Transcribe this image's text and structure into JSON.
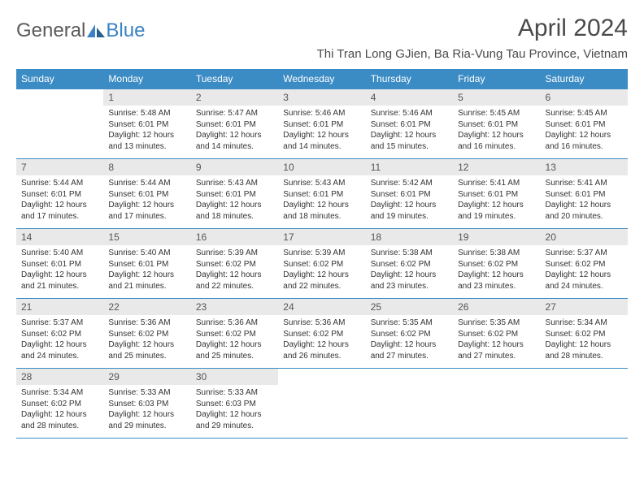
{
  "logo": {
    "text1": "General",
    "text2": "Blue"
  },
  "title": "April 2024",
  "location": "Thi Tran Long GJien, Ba Ria-Vung Tau Province, Vietnam",
  "colors": {
    "header_bg": "#3b8bc4",
    "header_text": "#ffffff",
    "daynum_bg": "#e9e9e9",
    "border": "#3b8bc4",
    "logo_gray": "#5a5a5a",
    "logo_blue": "#3b82c4"
  },
  "weekdays": [
    "Sunday",
    "Monday",
    "Tuesday",
    "Wednesday",
    "Thursday",
    "Friday",
    "Saturday"
  ],
  "weeks": [
    [
      null,
      {
        "n": "1",
        "sr": "5:48 AM",
        "ss": "6:01 PM",
        "dl": "12 hours and 13 minutes."
      },
      {
        "n": "2",
        "sr": "5:47 AM",
        "ss": "6:01 PM",
        "dl": "12 hours and 14 minutes."
      },
      {
        "n": "3",
        "sr": "5:46 AM",
        "ss": "6:01 PM",
        "dl": "12 hours and 14 minutes."
      },
      {
        "n": "4",
        "sr": "5:46 AM",
        "ss": "6:01 PM",
        "dl": "12 hours and 15 minutes."
      },
      {
        "n": "5",
        "sr": "5:45 AM",
        "ss": "6:01 PM",
        "dl": "12 hours and 16 minutes."
      },
      {
        "n": "6",
        "sr": "5:45 AM",
        "ss": "6:01 PM",
        "dl": "12 hours and 16 minutes."
      }
    ],
    [
      {
        "n": "7",
        "sr": "5:44 AM",
        "ss": "6:01 PM",
        "dl": "12 hours and 17 minutes."
      },
      {
        "n": "8",
        "sr": "5:44 AM",
        "ss": "6:01 PM",
        "dl": "12 hours and 17 minutes."
      },
      {
        "n": "9",
        "sr": "5:43 AM",
        "ss": "6:01 PM",
        "dl": "12 hours and 18 minutes."
      },
      {
        "n": "10",
        "sr": "5:43 AM",
        "ss": "6:01 PM",
        "dl": "12 hours and 18 minutes."
      },
      {
        "n": "11",
        "sr": "5:42 AM",
        "ss": "6:01 PM",
        "dl": "12 hours and 19 minutes."
      },
      {
        "n": "12",
        "sr": "5:41 AM",
        "ss": "6:01 PM",
        "dl": "12 hours and 19 minutes."
      },
      {
        "n": "13",
        "sr": "5:41 AM",
        "ss": "6:01 PM",
        "dl": "12 hours and 20 minutes."
      }
    ],
    [
      {
        "n": "14",
        "sr": "5:40 AM",
        "ss": "6:01 PM",
        "dl": "12 hours and 21 minutes."
      },
      {
        "n": "15",
        "sr": "5:40 AM",
        "ss": "6:01 PM",
        "dl": "12 hours and 21 minutes."
      },
      {
        "n": "16",
        "sr": "5:39 AM",
        "ss": "6:02 PM",
        "dl": "12 hours and 22 minutes."
      },
      {
        "n": "17",
        "sr": "5:39 AM",
        "ss": "6:02 PM",
        "dl": "12 hours and 22 minutes."
      },
      {
        "n": "18",
        "sr": "5:38 AM",
        "ss": "6:02 PM",
        "dl": "12 hours and 23 minutes."
      },
      {
        "n": "19",
        "sr": "5:38 AM",
        "ss": "6:02 PM",
        "dl": "12 hours and 23 minutes."
      },
      {
        "n": "20",
        "sr": "5:37 AM",
        "ss": "6:02 PM",
        "dl": "12 hours and 24 minutes."
      }
    ],
    [
      {
        "n": "21",
        "sr": "5:37 AM",
        "ss": "6:02 PM",
        "dl": "12 hours and 24 minutes."
      },
      {
        "n": "22",
        "sr": "5:36 AM",
        "ss": "6:02 PM",
        "dl": "12 hours and 25 minutes."
      },
      {
        "n": "23",
        "sr": "5:36 AM",
        "ss": "6:02 PM",
        "dl": "12 hours and 25 minutes."
      },
      {
        "n": "24",
        "sr": "5:36 AM",
        "ss": "6:02 PM",
        "dl": "12 hours and 26 minutes."
      },
      {
        "n": "25",
        "sr": "5:35 AM",
        "ss": "6:02 PM",
        "dl": "12 hours and 27 minutes."
      },
      {
        "n": "26",
        "sr": "5:35 AM",
        "ss": "6:02 PM",
        "dl": "12 hours and 27 minutes."
      },
      {
        "n": "27",
        "sr": "5:34 AM",
        "ss": "6:02 PM",
        "dl": "12 hours and 28 minutes."
      }
    ],
    [
      {
        "n": "28",
        "sr": "5:34 AM",
        "ss": "6:02 PM",
        "dl": "12 hours and 28 minutes."
      },
      {
        "n": "29",
        "sr": "5:33 AM",
        "ss": "6:03 PM",
        "dl": "12 hours and 29 minutes."
      },
      {
        "n": "30",
        "sr": "5:33 AM",
        "ss": "6:03 PM",
        "dl": "12 hours and 29 minutes."
      },
      null,
      null,
      null,
      null
    ]
  ],
  "labels": {
    "sunrise": "Sunrise:",
    "sunset": "Sunset:",
    "daylight": "Daylight:"
  }
}
